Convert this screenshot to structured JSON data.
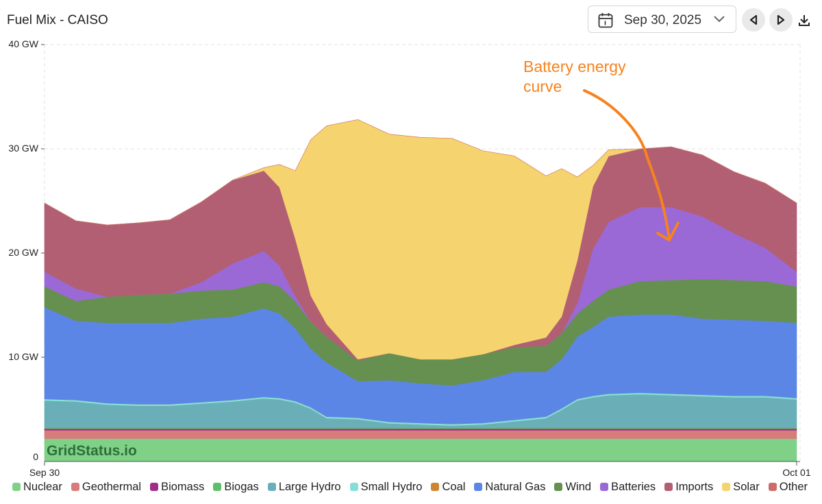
{
  "header": {
    "title": "Fuel Mix - CAISO",
    "date": "Sep 30, 2025"
  },
  "watermark": "GridStatus.io",
  "annotation": {
    "text_line1": "Battery energy",
    "text_line2": "curve",
    "color": "#f5831f"
  },
  "chart_data": {
    "type": "area",
    "stacked": true,
    "title": "",
    "x_start_label": "Sep 30",
    "x_end_label": "Oct 01",
    "y_unit": "GW",
    "ylim": [
      0,
      40
    ],
    "y_ticks": [
      "0",
      "10 GW",
      "20 GW",
      "30 GW",
      "40 GW"
    ],
    "grid": true,
    "legend_position": "bottom",
    "x_hours": [
      0,
      1,
      2,
      3,
      4,
      5,
      6,
      7,
      7.5,
      8,
      8.5,
      9,
      10,
      11,
      12,
      13,
      14,
      15,
      16,
      16.5,
      17,
      17.5,
      18,
      19,
      20,
      21,
      22,
      23,
      24
    ],
    "series": [
      {
        "name": "Nuclear",
        "color": "#7ed187",
        "values": [
          2.2,
          2.2,
          2.2,
          2.2,
          2.2,
          2.2,
          2.2,
          2.2,
          2.2,
          2.2,
          2.2,
          2.2,
          2.2,
          2.2,
          2.2,
          2.2,
          2.2,
          2.2,
          2.2,
          2.2,
          2.2,
          2.2,
          2.2,
          2.2,
          2.2,
          2.2,
          2.2,
          2.2,
          2.2
        ]
      },
      {
        "name": "Geothermal",
        "color": "#d77b7b",
        "values": [
          0.8,
          0.8,
          0.8,
          0.8,
          0.8,
          0.8,
          0.8,
          0.8,
          0.8,
          0.8,
          0.8,
          0.8,
          0.8,
          0.8,
          0.8,
          0.8,
          0.8,
          0.8,
          0.8,
          0.8,
          0.8,
          0.8,
          0.8,
          0.8,
          0.8,
          0.8,
          0.8,
          0.8,
          0.8
        ]
      },
      {
        "name": "Biomass",
        "color": "#a02c8c",
        "values": [
          0.15,
          0.15,
          0.15,
          0.15,
          0.15,
          0.15,
          0.15,
          0.15,
          0.15,
          0.15,
          0.15,
          0.15,
          0.15,
          0.15,
          0.15,
          0.15,
          0.15,
          0.15,
          0.15,
          0.15,
          0.15,
          0.15,
          0.15,
          0.15,
          0.15,
          0.15,
          0.15,
          0.15,
          0.15
        ]
      },
      {
        "name": "Biogas",
        "color": "#5cbf6a",
        "values": [
          0.1,
          0.1,
          0.1,
          0.1,
          0.1,
          0.1,
          0.1,
          0.1,
          0.1,
          0.1,
          0.1,
          0.1,
          0.1,
          0.1,
          0.1,
          0.1,
          0.1,
          0.1,
          0.1,
          0.1,
          0.1,
          0.1,
          0.1,
          0.1,
          0.1,
          0.1,
          0.1,
          0.1,
          0.1
        ]
      },
      {
        "name": "Large Hydro",
        "color": "#6aafb8",
        "values": [
          2.6,
          2.5,
          2.2,
          2.1,
          2.1,
          2.3,
          2.5,
          2.8,
          2.7,
          2.4,
          1.8,
          0.9,
          0.8,
          0.4,
          0.3,
          0.2,
          0.3,
          0.6,
          0.9,
          1.7,
          2.6,
          2.9,
          3.1,
          3.2,
          3.1,
          3.0,
          2.9,
          2.9,
          2.7
        ]
      },
      {
        "name": "Small Hydro",
        "color": "#86dfd6",
        "values": [
          0.15,
          0.15,
          0.15,
          0.15,
          0.15,
          0.15,
          0.15,
          0.15,
          0.15,
          0.15,
          0.15,
          0.15,
          0.15,
          0.15,
          0.15,
          0.15,
          0.15,
          0.15,
          0.15,
          0.15,
          0.15,
          0.15,
          0.15,
          0.15,
          0.15,
          0.15,
          0.15,
          0.15,
          0.15
        ]
      },
      {
        "name": "Coal",
        "color": "#cf8434",
        "values": [
          0,
          0,
          0,
          0,
          0,
          0,
          0,
          0,
          0,
          0,
          0,
          0,
          0,
          0,
          0,
          0,
          0,
          0,
          0,
          0,
          0,
          0,
          0,
          0,
          0,
          0,
          0,
          0,
          0
        ]
      },
      {
        "name": "Natural Gas",
        "color": "#5b86e5",
        "values": [
          8.8,
          7.6,
          7.7,
          7.8,
          7.8,
          8.0,
          8.0,
          8.5,
          8.1,
          7.0,
          5.6,
          5.2,
          3.5,
          4.0,
          3.8,
          3.7,
          4.1,
          4.6,
          4.3,
          4.7,
          6.0,
          6.6,
          7.4,
          7.5,
          7.6,
          7.3,
          7.3,
          7.2,
          7.2
        ]
      },
      {
        "name": "Wind",
        "color": "#66904f",
        "values": [
          2.0,
          1.9,
          2.5,
          2.7,
          2.8,
          2.7,
          2.6,
          2.5,
          2.6,
          2.6,
          2.6,
          2.5,
          2.0,
          2.6,
          2.3,
          2.5,
          2.5,
          2.4,
          2.5,
          2.5,
          2.2,
          2.5,
          2.6,
          3.2,
          3.3,
          3.8,
          3.8,
          3.8,
          3.5
        ]
      },
      {
        "name": "Batteries",
        "color": "#9a69d6",
        "values": [
          1.4,
          1.2,
          0,
          0,
          0,
          0.8,
          2.5,
          3.0,
          2.0,
          0.5,
          0,
          0,
          0,
          0,
          0,
          0,
          0,
          0,
          0,
          0,
          1.0,
          5.0,
          6.5,
          7.1,
          7.0,
          6.0,
          4.5,
          3.2,
          1.4
        ]
      },
      {
        "name": "Imports",
        "color": "#b25f74",
        "values": [
          6.6,
          6.5,
          6.9,
          6.9,
          7.1,
          7.7,
          8.0,
          7.7,
          7.5,
          5.5,
          2.5,
          1.2,
          0.1,
          0,
          0,
          0,
          0,
          0.2,
          0.8,
          1.6,
          4.1,
          6.0,
          6.3,
          5.6,
          5.8,
          5.9,
          5.9,
          6.2,
          6.6
        ]
      },
      {
        "name": "Solar",
        "color": "#f5d36e",
        "values": [
          0,
          0,
          0,
          0,
          0,
          0,
          0,
          0.3,
          2.2,
          6.5,
          15.0,
          19.0,
          23.0,
          21.0,
          21.3,
          21.2,
          19.5,
          18.1,
          15.5,
          14.2,
          8.0,
          2.0,
          0.6,
          0,
          0,
          0,
          0,
          0,
          0
        ]
      },
      {
        "name": "Other",
        "color": "#cd6b6b",
        "values": [
          0,
          0,
          0,
          0,
          0,
          0,
          0,
          0,
          0,
          0,
          0,
          0,
          0,
          0,
          0,
          0,
          0,
          0,
          0,
          0,
          0,
          0,
          0,
          0,
          0,
          0,
          0,
          0,
          0
        ]
      }
    ]
  }
}
